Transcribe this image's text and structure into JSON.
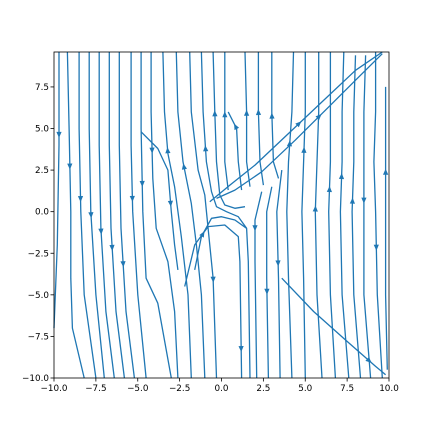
{
  "chart_data": {
    "type": "streamplot",
    "title": "",
    "xlabel": "",
    "ylabel": "",
    "xlim": [
      -10,
      10
    ],
    "ylim": [
      -10,
      9.6
    ],
    "xticks": [
      -10,
      -7.5,
      -5,
      -2.5,
      0,
      2.5,
      5,
      7.5,
      10
    ],
    "xtick_labels": [
      "−10.0",
      "−7.5",
      "−5.0",
      "−2.5",
      "0.0",
      "2.5",
      "5.0",
      "7.5",
      "10.0"
    ],
    "yticks": [
      -10,
      -7.5,
      -5,
      -2.5,
      0,
      2.5,
      5,
      7.5
    ],
    "ytick_labels": [
      "−10.0",
      "−7.5",
      "−5.0",
      "−2.5",
      "0.0",
      "2.5",
      "5.0",
      "7.5"
    ],
    "grid": false,
    "line_color": "#1f77b4",
    "streamlines": [
      {
        "points": [
          [
            -9.7,
            9.6
          ],
          [
            -9.7,
            4
          ],
          [
            -9.8,
            -2
          ],
          [
            -10,
            -7
          ]
        ],
        "arrow_at": 0.3,
        "direction": "down"
      },
      {
        "points": [
          [
            -9.2,
            9.6
          ],
          [
            -9.1,
            5
          ],
          [
            -9.0,
            0
          ],
          [
            -9.0,
            -4
          ],
          [
            -8.9,
            -7
          ],
          [
            -8.2,
            -10
          ]
        ],
        "arrow_at": 0.35,
        "direction": "down"
      },
      {
        "points": [
          [
            -8.5,
            9.6
          ],
          [
            -8.5,
            5
          ],
          [
            -8.4,
            0
          ],
          [
            -8.2,
            -5
          ],
          [
            -7.5,
            -10
          ]
        ],
        "arrow_at": 0.45,
        "direction": "down"
      },
      {
        "points": [
          [
            -7.9,
            9.6
          ],
          [
            -7.9,
            5
          ],
          [
            -7.8,
            0
          ],
          [
            -7.5,
            -5
          ],
          [
            -7.0,
            -10
          ]
        ],
        "arrow_at": 0.5,
        "direction": "down"
      },
      {
        "points": [
          [
            -7.3,
            9.6
          ],
          [
            -7.3,
            4
          ],
          [
            -7.2,
            -1
          ],
          [
            -6.9,
            -6
          ],
          [
            -6.4,
            -10
          ]
        ],
        "arrow_at": 0.55,
        "direction": "down"
      },
      {
        "points": [
          [
            -6.7,
            9.6
          ],
          [
            -6.7,
            4
          ],
          [
            -6.6,
            -1
          ],
          [
            -6.3,
            -6
          ],
          [
            -5.8,
            -10
          ]
        ],
        "arrow_at": 0.6,
        "direction": "down"
      },
      {
        "points": [
          [
            -6.1,
            9.6
          ],
          [
            -6.1,
            4
          ],
          [
            -6.0,
            -1
          ],
          [
            -5.7,
            -6
          ],
          [
            -5.2,
            -10
          ]
        ],
        "arrow_at": 0.65,
        "direction": "down"
      },
      {
        "points": [
          [
            -5.4,
            9.6
          ],
          [
            -5.4,
            4
          ],
          [
            -5.3,
            0
          ],
          [
            -5.0,
            -5
          ],
          [
            -4.5,
            -10
          ]
        ],
        "arrow_at": 0.45,
        "direction": "down"
      },
      {
        "points": [
          [
            -4.8,
            9.6
          ],
          [
            -4.8,
            5
          ],
          [
            -4.7,
            0
          ],
          [
            -4.5,
            -4
          ],
          [
            -3.8,
            -5.5
          ],
          [
            -3.0,
            -10
          ]
        ],
        "arrow_at": 0.4,
        "direction": "down"
      },
      {
        "points": [
          [
            -4.2,
            9.6
          ],
          [
            -4.2,
            6
          ],
          [
            -4.1,
            2
          ],
          [
            -3.9,
            -1
          ],
          [
            -3.2,
            -3
          ],
          [
            -2.8,
            -6
          ],
          [
            -2.6,
            -10
          ]
        ],
        "arrow_at": 0.3,
        "direction": "down"
      },
      {
        "points": [
          [
            -4.8,
            4.8
          ],
          [
            -3.8,
            3.8
          ],
          [
            -3.2,
            2.5
          ],
          [
            -3.0,
            0
          ],
          [
            -2.8,
            -2
          ],
          [
            -2.6,
            -3.5
          ]
        ],
        "arrow_at": 0.55,
        "direction": "down"
      },
      {
        "points": [
          [
            -3.5,
            9.6
          ],
          [
            -3.4,
            6
          ],
          [
            -3.2,
            3.5
          ],
          [
            -2.8,
            1.5
          ],
          [
            -2.4,
            -1.5
          ],
          [
            -2.0,
            -5
          ],
          [
            -1.8,
            -10
          ]
        ],
        "arrow_at": 0.3,
        "direction": "up"
      },
      {
        "points": [
          [
            -2.7,
            9.6
          ],
          [
            -2.6,
            6
          ],
          [
            -2.3,
            3
          ],
          [
            -1.8,
            0.5
          ],
          [
            -1.5,
            -2
          ],
          [
            -1.2,
            -5
          ],
          [
            -1.0,
            -10
          ]
        ],
        "arrow_at": 0.35,
        "direction": "up"
      },
      {
        "points": [
          [
            -1.9,
            9.6
          ],
          [
            -1.8,
            6
          ],
          [
            -1.4,
            2.5
          ],
          [
            -1.0,
            1.0
          ],
          [
            -0.8,
            -1
          ],
          [
            -0.5,
            -4
          ],
          [
            -0.3,
            -10
          ]
        ],
        "arrow_at": 0.7,
        "direction": "down"
      },
      {
        "points": [
          [
            -1.2,
            9.6
          ],
          [
            -1.1,
            6
          ],
          [
            -0.9,
            3
          ],
          [
            -0.6,
            1.2
          ],
          [
            -0.3,
            0.3
          ],
          [
            0.3,
            0.0
          ],
          [
            1.0,
            -0.3
          ],
          [
            1.5,
            -1
          ],
          [
            1.6,
            -3
          ],
          [
            1.7,
            -10
          ]
        ],
        "arrow_at": 0.28,
        "direction": "up"
      },
      {
        "points": [
          [
            -0.5,
            9.6
          ],
          [
            -0.4,
            6
          ],
          [
            -0.3,
            3
          ],
          [
            -0.1,
            1.0
          ],
          [
            0.2,
            0.4
          ],
          [
            0.8,
            0.2
          ],
          [
            1.4,
            0.3
          ]
        ],
        "arrow_at": 0.35,
        "direction": "up"
      },
      {
        "points": [
          [
            0.2,
            9.6
          ],
          [
            0.2,
            6
          ],
          [
            0.2,
            3
          ],
          [
            0.4,
            1.3
          ]
        ],
        "arrow_at": 0.45,
        "direction": "up"
      },
      {
        "points": [
          [
            -1.6,
            -3.5
          ],
          [
            -1.2,
            -1.5
          ],
          [
            -0.6,
            -0.4
          ],
          [
            0.0,
            -0.3
          ],
          [
            0.8,
            -0.5
          ],
          [
            1.5,
            -1.0
          ]
        ],
        "arrow_at": 0.4,
        "direction": "right"
      },
      {
        "points": [
          [
            -2.2,
            -4.5
          ],
          [
            -1.6,
            -2
          ],
          [
            -0.8,
            -0.9
          ],
          [
            0.2,
            -0.8
          ],
          [
            1.0,
            -1.5
          ],
          [
            1.1,
            -3
          ],
          [
            1.2,
            -10
          ]
        ],
        "arrow_at": 0.88,
        "direction": "down"
      },
      {
        "points": [
          [
            0.4,
            6
          ],
          [
            0.9,
            5
          ],
          [
            1.0,
            3
          ],
          [
            1.2,
            1.3
          ]
        ],
        "arrow_at": 0.2,
        "direction": "up"
      },
      {
        "points": [
          [
            1.4,
            9.6
          ],
          [
            1.5,
            6
          ],
          [
            1.5,
            3
          ],
          [
            1.7,
            1.5
          ]
        ],
        "arrow_at": 0.45,
        "direction": "up"
      },
      {
        "points": [
          [
            2.2,
            9.6
          ],
          [
            2.2,
            6
          ],
          [
            2.3,
            3
          ],
          [
            2.5,
            1.6
          ]
        ],
        "arrow_at": 0.45,
        "direction": "up"
      },
      {
        "points": [
          [
            3.0,
            9.6
          ],
          [
            3.0,
            6
          ],
          [
            3.1,
            3
          ],
          [
            3.4,
            2.0
          ]
        ],
        "arrow_at": 0.5,
        "direction": "up"
      },
      {
        "points": [
          [
            2.4,
            1.2
          ],
          [
            2.0,
            -0.5
          ],
          [
            2.0,
            -3
          ],
          [
            2.1,
            -10
          ]
        ],
        "arrow_at": 0.2,
        "direction": "down"
      },
      {
        "points": [
          [
            3.0,
            1.5
          ],
          [
            2.7,
            0
          ],
          [
            2.7,
            -4
          ],
          [
            2.8,
            -10
          ]
        ],
        "arrow_at": 0.55,
        "direction": "down"
      },
      {
        "points": [
          [
            3.6,
            2.5
          ],
          [
            3.3,
            0
          ],
          [
            3.4,
            -4
          ],
          [
            3.5,
            -10
          ]
        ],
        "arrow_at": 0.45,
        "direction": "down"
      },
      {
        "points": [
          [
            4.3,
            9.6
          ],
          [
            4.2,
            6
          ],
          [
            4.0,
            3
          ],
          [
            3.9,
            0
          ],
          [
            4.0,
            -4
          ],
          [
            4.2,
            -10
          ]
        ],
        "arrow_at": 0.28,
        "direction": "up"
      },
      {
        "points": [
          [
            5.0,
            9.6
          ],
          [
            5.0,
            6
          ],
          [
            4.9,
            3
          ],
          [
            4.8,
            0
          ],
          [
            4.9,
            -4
          ],
          [
            5.0,
            -10
          ]
        ],
        "arrow_at": 0.3,
        "direction": "up"
      },
      {
        "points": [
          [
            5.8,
            9.6
          ],
          [
            5.8,
            6
          ],
          [
            5.7,
            3
          ],
          [
            5.6,
            0
          ],
          [
            5.7,
            -5
          ],
          [
            6.0,
            -10
          ]
        ],
        "arrow_at": 0.48,
        "direction": "up"
      },
      {
        "points": [
          [
            6.5,
            9.6
          ],
          [
            6.5,
            6
          ],
          [
            6.5,
            3
          ],
          [
            6.4,
            0
          ],
          [
            6.5,
            -5
          ],
          [
            6.8,
            -10
          ]
        ],
        "arrow_at": 0.42,
        "direction": "up"
      },
      {
        "points": [
          [
            7.3,
            9.6
          ],
          [
            7.2,
            6
          ],
          [
            7.2,
            3
          ],
          [
            7.1,
            0
          ],
          [
            7.2,
            -5
          ],
          [
            7.6,
            -10
          ]
        ],
        "arrow_at": 0.38,
        "direction": "up"
      },
      {
        "points": [
          [
            8.0,
            9.4
          ],
          [
            7.9,
            6
          ],
          [
            7.9,
            3
          ],
          [
            7.8,
            0
          ],
          [
            7.9,
            -5
          ],
          [
            8.3,
            -10
          ]
        ],
        "arrow_at": 0.45,
        "direction": "up"
      },
      {
        "points": [
          [
            8.6,
            9.4
          ],
          [
            8.5,
            6
          ],
          [
            8.5,
            3
          ],
          [
            8.5,
            0
          ],
          [
            8.5,
            -5
          ],
          [
            8.9,
            -10
          ]
        ],
        "arrow_at": 0.45,
        "direction": "down"
      },
      {
        "points": [
          [
            9.2,
            9.6
          ],
          [
            9.2,
            6
          ],
          [
            9.1,
            3
          ],
          [
            9.2,
            0
          ],
          [
            9.3,
            -5
          ],
          [
            9.6,
            -10
          ]
        ],
        "arrow_at": 0.6,
        "direction": "down"
      },
      {
        "points": [
          [
            9.8,
            7.5
          ],
          [
            9.8,
            3
          ],
          [
            9.8,
            0
          ],
          [
            9.8,
            -5
          ],
          [
            9.9,
            -9.5
          ]
        ],
        "arrow_at": 0.3,
        "direction": "up"
      },
      {
        "points": [
          [
            -0.7,
            0.6
          ],
          [
            0.5,
            1.6
          ],
          [
            2.0,
            2.8
          ],
          [
            4.0,
            4.7
          ],
          [
            6.0,
            6.6
          ],
          [
            8.0,
            8.5
          ],
          [
            9.6,
            9.6
          ]
        ],
        "arrow_at": 0.52,
        "direction": "up"
      },
      {
        "points": [
          [
            -0.3,
            0.8
          ],
          [
            0.8,
            1.3
          ],
          [
            2.4,
            2.4
          ],
          [
            4.4,
            4.3
          ],
          [
            6.4,
            6.3
          ],
          [
            8.4,
            8.3
          ],
          [
            9.6,
            9.5
          ]
        ],
        "arrow_at": 0.6,
        "direction": "up"
      },
      {
        "points": [
          [
            3.6,
            -4
          ],
          [
            5.5,
            -6
          ],
          [
            7.5,
            -7.8
          ],
          [
            9.2,
            -9.3
          ],
          [
            9.8,
            -9.8
          ]
        ],
        "arrow_at": 0.85,
        "direction": "down"
      }
    ]
  }
}
